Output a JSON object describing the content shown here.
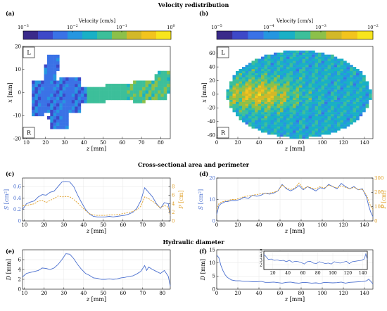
{
  "sections": {
    "velocity_title": "Velocity redistribution",
    "area_title": "Cross-sectional area and perimeter",
    "hydraulic_title": "Hydraulic diameter"
  },
  "panel_labels": [
    "(a)",
    "(b)",
    "(c)",
    "(d)",
    "(e)",
    "(f)"
  ],
  "colors": {
    "blue_series": "#4a6fcf",
    "orange_series": "#e0a02a",
    "grid": "#e6e6e6",
    "outline": "#2a2a9a"
  },
  "chart_data": [
    {
      "id": "a",
      "type": "heatmap",
      "colorbar_title": "Velocity [cm/s]",
      "colorbar_scale": "log",
      "colorbar_range": [
        0.001,
        1
      ],
      "colorbar_ticks": [
        {
          "base": "10",
          "exp": "−3"
        },
        {
          "base": "10",
          "exp": "−2"
        },
        {
          "base": "10",
          "exp": "−1"
        },
        {
          "base": "10",
          "exp": "0"
        }
      ],
      "colormap": [
        "#3a2a8a",
        "#3d48c8",
        "#3a72e6",
        "#2596e0",
        "#19b0c6",
        "#3cbf9a",
        "#8cc04a",
        "#d2b828",
        "#f2c41e",
        "#f7e51d"
      ],
      "xlabel": "z [mm]",
      "ylabel": "x [mm]",
      "xlim": [
        8,
        85
      ],
      "ylim": [
        -20,
        20
      ],
      "xticks": [
        10,
        20,
        30,
        40,
        50,
        60,
        70,
        80
      ],
      "yticks": [
        -20,
        -10,
        0,
        10,
        20
      ],
      "corner_labels": [
        "L",
        "R"
      ]
    },
    {
      "id": "b",
      "type": "heatmap",
      "colorbar_title": "Velocity [cm/s]",
      "colorbar_scale": "log",
      "colorbar_range": [
        1e-05,
        0.01
      ],
      "colorbar_ticks": [
        {
          "base": "10",
          "exp": "−5"
        },
        {
          "base": "10",
          "exp": "−4"
        },
        {
          "base": "10",
          "exp": "−3"
        },
        {
          "base": "10",
          "exp": "−2"
        }
      ],
      "xlabel": "z [mm]",
      "ylabel": "x [mm]",
      "xlim": [
        0,
        148
      ],
      "ylim": [
        -65,
        70
      ],
      "xticks": [
        0,
        20,
        40,
        60,
        80,
        100,
        120,
        140
      ],
      "yticks": [
        -60,
        -40,
        -20,
        0,
        20,
        40,
        60
      ],
      "corner_labels": [
        "L",
        "R"
      ]
    },
    {
      "id": "c",
      "type": "line",
      "xlabel": "z [mm]",
      "ylabel_left": "S [cm²]",
      "ylabel_right": "P [cm]",
      "xlim": [
        9,
        84
      ],
      "ylim_left": [
        0,
        0.75
      ],
      "ylim_right": [
        0,
        10
      ],
      "xticks": [
        10,
        20,
        30,
        40,
        50,
        60,
        70,
        80
      ],
      "yticks_left": [
        0,
        0.2,
        0.4,
        0.6
      ],
      "yticks_right": [
        0,
        2,
        4,
        6,
        8
      ],
      "series": [
        {
          "axis": "left",
          "style": "solid",
          "color": "#4a6fcf",
          "x": [
            9,
            11,
            13,
            15,
            17,
            19,
            21,
            23,
            25,
            27,
            29,
            31,
            33,
            35,
            37,
            39,
            41,
            43,
            45,
            47,
            49,
            51,
            53,
            55,
            57,
            59,
            61,
            63,
            65,
            67,
            69,
            71,
            73,
            75,
            77,
            79,
            81,
            83,
            84
          ],
          "y": [
            0.2,
            0.3,
            0.33,
            0.35,
            0.42,
            0.46,
            0.45,
            0.5,
            0.52,
            0.6,
            0.68,
            0.69,
            0.68,
            0.6,
            0.45,
            0.32,
            0.2,
            0.12,
            0.08,
            0.07,
            0.07,
            0.07,
            0.08,
            0.07,
            0.08,
            0.09,
            0.1,
            0.12,
            0.15,
            0.22,
            0.35,
            0.58,
            0.5,
            0.42,
            0.3,
            0.22,
            0.32,
            0.3,
            0.1
          ]
        },
        {
          "axis": "right",
          "style": "dashed",
          "color": "#e0a02a",
          "x": [
            9,
            11,
            13,
            15,
            17,
            19,
            21,
            23,
            25,
            27,
            29,
            31,
            33,
            35,
            37,
            39,
            41,
            43,
            45,
            47,
            49,
            51,
            53,
            55,
            57,
            59,
            61,
            63,
            65,
            67,
            69,
            71,
            73,
            75,
            77,
            79,
            81,
            83,
            84
          ],
          "y": [
            3.5,
            3.6,
            3.8,
            4.0,
            4.6,
            4.8,
            4.3,
            4.8,
            5.2,
            5.8,
            5.6,
            5.7,
            5.6,
            5.0,
            4.2,
            3.3,
            2.4,
            1.7,
            1.4,
            1.3,
            1.3,
            1.3,
            1.4,
            1.4,
            1.5,
            1.6,
            1.8,
            2.0,
            2.2,
            2.6,
            3.4,
            5.6,
            5.2,
            4.6,
            3.8,
            3.0,
            3.6,
            3.2,
            1.2
          ]
        }
      ]
    },
    {
      "id": "d",
      "type": "line",
      "xlabel": "z [mm]",
      "ylabel_left": "S [cm²]",
      "ylabel_right": "P [cm]",
      "xlim": [
        0,
        148
      ],
      "ylim_left": [
        0,
        20
      ],
      "ylim_right": [
        0,
        300
      ],
      "xticks": [
        0,
        20,
        40,
        60,
        80,
        100,
        120,
        140
      ],
      "yticks_left": [
        0,
        10,
        20
      ],
      "yticks_right": [
        0,
        100,
        200,
        300
      ],
      "series": [
        {
          "axis": "left",
          "style": "solid",
          "color": "#4a6fcf",
          "x": [
            0,
            2,
            4,
            6,
            8,
            10,
            14,
            18,
            22,
            26,
            30,
            34,
            38,
            42,
            46,
            50,
            54,
            58,
            62,
            66,
            70,
            74,
            78,
            82,
            86,
            90,
            94,
            98,
            102,
            106,
            110,
            114,
            118,
            122,
            126,
            130,
            134,
            138,
            142,
            144,
            146,
            148
          ],
          "y": [
            3,
            7,
            8,
            8.5,
            9,
            9,
            9.5,
            9.5,
            10,
            11,
            10.5,
            12,
            11.5,
            12,
            13,
            12.5,
            13,
            14,
            17,
            15,
            14,
            15,
            16.5,
            14.5,
            16,
            15,
            14,
            15.5,
            15,
            17,
            16,
            15,
            17.5,
            16,
            15,
            16,
            14.5,
            15,
            11,
            7,
            4,
            2
          ]
        },
        {
          "axis": "right",
          "style": "dashed",
          "color": "#e0a02a",
          "x": [
            0,
            2,
            4,
            6,
            8,
            10,
            14,
            18,
            22,
            26,
            30,
            34,
            38,
            42,
            46,
            50,
            54,
            58,
            62,
            66,
            70,
            74,
            78,
            82,
            86,
            90,
            94,
            98,
            102,
            106,
            110,
            114,
            118,
            122,
            126,
            130,
            134,
            138,
            142,
            144,
            146,
            148
          ],
          "y": [
            80,
            120,
            130,
            135,
            140,
            140,
            150,
            150,
            160,
            170,
            175,
            180,
            185,
            190,
            195,
            195,
            200,
            210,
            250,
            230,
            220,
            230,
            265,
            225,
            240,
            230,
            225,
            240,
            230,
            250,
            240,
            230,
            245,
            235,
            225,
            235,
            220,
            220,
            180,
            140,
            100,
            80
          ]
        }
      ]
    },
    {
      "id": "e",
      "type": "line",
      "xlabel": "z [mm]",
      "ylabel": "D [mm]",
      "xlim": [
        9,
        84
      ],
      "ylim": [
        0,
        8
      ],
      "xticks": [
        10,
        20,
        30,
        40,
        50,
        60,
        70,
        80
      ],
      "yticks": [
        0,
        2,
        4,
        6
      ],
      "series": [
        {
          "color": "#4a6fcf",
          "x": [
            9,
            11,
            13,
            15,
            17,
            19,
            21,
            23,
            25,
            27,
            29,
            31,
            33,
            35,
            37,
            39,
            41,
            43,
            45,
            47,
            49,
            51,
            53,
            55,
            57,
            59,
            61,
            63,
            65,
            67,
            69,
            71,
            72,
            73,
            75,
            77,
            79,
            81,
            83,
            84
          ],
          "y": [
            2.5,
            3.2,
            3.4,
            3.6,
            3.8,
            4.3,
            4.2,
            4.0,
            4.3,
            5.0,
            6.0,
            7.2,
            7.1,
            6.2,
            5.0,
            4.0,
            3.2,
            2.8,
            2.3,
            2.2,
            2.0,
            2.0,
            2.1,
            2.0,
            2.1,
            2.3,
            2.4,
            2.6,
            2.7,
            3.1,
            3.6,
            4.8,
            3.8,
            4.5,
            4.0,
            3.6,
            3.2,
            3.8,
            2.6,
            0.6
          ]
        }
      ]
    },
    {
      "id": "f",
      "type": "line",
      "xlabel": "z [mm]",
      "ylabel": "D [mm]",
      "xlim": [
        0,
        148
      ],
      "ylim": [
        0,
        15
      ],
      "xticks": [
        0,
        20,
        40,
        60,
        80,
        100,
        120,
        140
      ],
      "yticks": [
        0,
        5,
        10,
        15
      ],
      "series": [
        {
          "color": "#4a6fcf",
          "x": [
            0,
            2,
            4,
            6,
            8,
            10,
            14,
            18,
            22,
            26,
            30,
            34,
            38,
            42,
            46,
            50,
            54,
            58,
            62,
            66,
            70,
            74,
            78,
            82,
            86,
            90,
            94,
            98,
            102,
            106,
            110,
            114,
            118,
            122,
            126,
            130,
            134,
            138,
            142,
            144,
            146,
            148
          ],
          "y": [
            13,
            12,
            9,
            7,
            5.5,
            4.5,
            3.5,
            3.2,
            3.2,
            3.0,
            3.0,
            2.8,
            2.8,
            3.0,
            2.6,
            2.6,
            2.7,
            2.5,
            2.3,
            2.6,
            2.7,
            2.4,
            2.3,
            2.6,
            2.5,
            2.3,
            2.4,
            2.2,
            2.6,
            2.5,
            2.4,
            2.5,
            2.7,
            2.3,
            2.6,
            2.7,
            2.8,
            2.9,
            3.2,
            3.8,
            3.0,
            2.0
          ]
        }
      ],
      "inset": {
        "xlim": [
          8,
          146
        ],
        "ylim": [
          1,
          5
        ],
        "xticks": [
          20,
          40,
          60,
          80,
          100,
          120,
          140
        ],
        "yticks": [
          2,
          3,
          4,
          5
        ],
        "x": [
          8,
          10,
          14,
          18,
          22,
          26,
          30,
          34,
          38,
          42,
          46,
          50,
          54,
          58,
          62,
          66,
          70,
          74,
          78,
          82,
          86,
          90,
          94,
          98,
          102,
          106,
          110,
          114,
          118,
          122,
          126,
          130,
          134,
          138,
          142,
          144,
          146
        ],
        "y": [
          4.3,
          4.0,
          3.2,
          3.3,
          3.0,
          3.1,
          2.9,
          3.0,
          2.7,
          3.0,
          2.6,
          2.8,
          2.7,
          2.5,
          2.2,
          2.7,
          2.8,
          2.4,
          2.3,
          2.7,
          2.5,
          2.3,
          2.4,
          2.2,
          2.7,
          2.5,
          2.4,
          2.6,
          2.8,
          2.3,
          2.7,
          2.8,
          2.9,
          3.0,
          3.3,
          4.4,
          3.2
        ]
      }
    }
  ]
}
